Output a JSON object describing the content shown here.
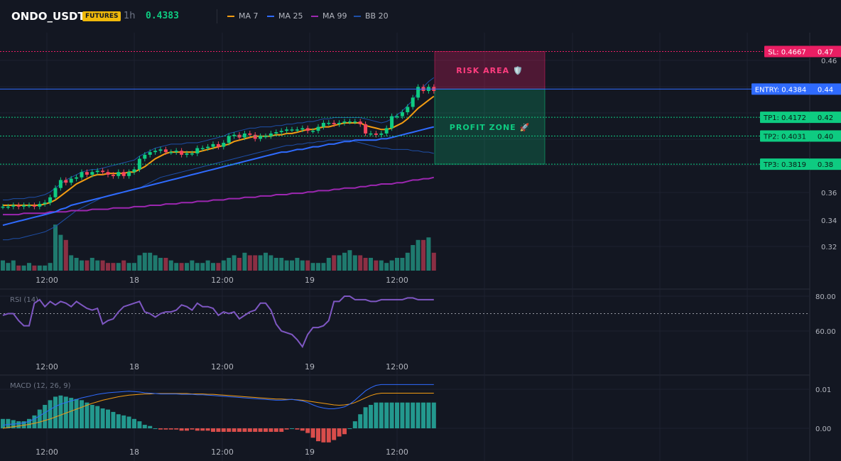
{
  "header": {
    "symbol": "ONDO_USDT",
    "badge": "FUTURES",
    "timeframe": "1h",
    "price": "0.4383",
    "legend": [
      {
        "label": "MA 7",
        "color": "#f39c12"
      },
      {
        "label": "MA 25",
        "color": "#2f6bff"
      },
      {
        "label": "MA 99",
        "color": "#9c27b0"
      },
      {
        "label": "BB 20",
        "color": "#1e4fa8"
      }
    ]
  },
  "levels": {
    "sl": {
      "label": "SL: 0.4667",
      "tick": "0.47",
      "price": 0.4667,
      "color": "#e91e63"
    },
    "entry": {
      "label": "ENTRY: 0.4384",
      "tick": "0.44",
      "price": 0.4384,
      "color": "#2f6bff"
    },
    "tp": [
      {
        "label": "TP1: 0.4172",
        "tick": "0.42",
        "price": 0.4172
      },
      {
        "label": "TP2: 0.4031",
        "tick": "0.40",
        "price": 0.4031
      },
      {
        "label": "TP3: 0.3819",
        "tick": "0.38",
        "price": 0.3819
      }
    ],
    "tp_color": "#0ecb81"
  },
  "zones": {
    "risk_label": "RISK AREA 🛡️",
    "profit_label": "PROFIT ZONE 🚀"
  },
  "chart_data": [
    {
      "type": "candlestick",
      "panel": "price",
      "yticks": [
        "0.46",
        "0.36",
        "0.34",
        "0.32"
      ],
      "xticks": [
        "12:00",
        "18",
        "12:00",
        "19",
        "12:00"
      ],
      "ylim": [
        0.3,
        0.47
      ],
      "close": [
        0.35,
        0.35,
        0.351,
        0.35,
        0.351,
        0.351,
        0.35,
        0.352,
        0.353,
        0.357,
        0.364,
        0.37,
        0.368,
        0.371,
        0.372,
        0.376,
        0.374,
        0.376,
        0.377,
        0.376,
        0.374,
        0.373,
        0.376,
        0.373,
        0.376,
        0.378,
        0.386,
        0.389,
        0.391,
        0.392,
        0.393,
        0.391,
        0.391,
        0.392,
        0.389,
        0.39,
        0.39,
        0.394,
        0.394,
        0.395,
        0.397,
        0.395,
        0.398,
        0.403,
        0.404,
        0.402,
        0.405,
        0.404,
        0.401,
        0.403,
        0.403,
        0.405,
        0.406,
        0.407,
        0.408,
        0.408,
        0.408,
        0.409,
        0.407,
        0.407,
        0.41,
        0.413,
        0.413,
        0.412,
        0.413,
        0.414,
        0.414,
        0.414,
        0.412,
        0.405,
        0.405,
        0.404,
        0.405,
        0.409,
        0.418,
        0.418,
        0.421,
        0.425,
        0.432,
        0.44,
        0.437,
        0.44,
        0.437
      ],
      "ma7": [
        0.351,
        0.351,
        0.351,
        0.351,
        0.351,
        0.351,
        0.351,
        0.351,
        0.352,
        0.353,
        0.355,
        0.358,
        0.361,
        0.364,
        0.367,
        0.369,
        0.371,
        0.373,
        0.374,
        0.374,
        0.375,
        0.375,
        0.375,
        0.375,
        0.376,
        0.376,
        0.378,
        0.38,
        0.383,
        0.386,
        0.388,
        0.39,
        0.391,
        0.391,
        0.391,
        0.391,
        0.391,
        0.391,
        0.392,
        0.393,
        0.394,
        0.395,
        0.396,
        0.397,
        0.399,
        0.4,
        0.401,
        0.402,
        0.403,
        0.403,
        0.403,
        0.403,
        0.404,
        0.404,
        0.405,
        0.405,
        0.406,
        0.407,
        0.408,
        0.408,
        0.409,
        0.41,
        0.41,
        0.411,
        0.412,
        0.413,
        0.413,
        0.413,
        0.413,
        0.411,
        0.41,
        0.409,
        0.408,
        0.408,
        0.409,
        0.411,
        0.413,
        0.416,
        0.42,
        0.424,
        0.427,
        0.43,
        0.433
      ],
      "ma25": [
        0.336,
        0.337,
        0.338,
        0.339,
        0.34,
        0.341,
        0.342,
        0.343,
        0.344,
        0.345,
        0.346,
        0.348,
        0.349,
        0.351,
        0.352,
        0.353,
        0.354,
        0.355,
        0.356,
        0.357,
        0.358,
        0.359,
        0.36,
        0.361,
        0.362,
        0.363,
        0.364,
        0.365,
        0.366,
        0.367,
        0.368,
        0.369,
        0.37,
        0.371,
        0.372,
        0.373,
        0.374,
        0.375,
        0.376,
        0.377,
        0.378,
        0.379,
        0.38,
        0.381,
        0.382,
        0.383,
        0.384,
        0.385,
        0.386,
        0.387,
        0.388,
        0.389,
        0.39,
        0.391,
        0.391,
        0.392,
        0.393,
        0.393,
        0.394,
        0.395,
        0.395,
        0.396,
        0.397,
        0.397,
        0.398,
        0.399,
        0.399,
        0.4,
        0.4,
        0.4,
        0.4,
        0.4,
        0.401,
        0.401,
        0.402,
        0.403,
        0.404,
        0.405,
        0.406,
        0.407,
        0.408,
        0.409,
        0.41
      ],
      "ma99": [
        0.344,
        0.344,
        0.344,
        0.344,
        0.345,
        0.345,
        0.345,
        0.345,
        0.345,
        0.346,
        0.346,
        0.346,
        0.346,
        0.347,
        0.347,
        0.347,
        0.347,
        0.348,
        0.348,
        0.348,
        0.348,
        0.349,
        0.349,
        0.349,
        0.349,
        0.35,
        0.35,
        0.35,
        0.351,
        0.351,
        0.351,
        0.352,
        0.352,
        0.352,
        0.353,
        0.353,
        0.353,
        0.354,
        0.354,
        0.354,
        0.355,
        0.355,
        0.355,
        0.356,
        0.356,
        0.356,
        0.357,
        0.357,
        0.357,
        0.358,
        0.358,
        0.358,
        0.359,
        0.359,
        0.359,
        0.36,
        0.36,
        0.36,
        0.361,
        0.361,
        0.362,
        0.362,
        0.362,
        0.363,
        0.363,
        0.364,
        0.364,
        0.364,
        0.365,
        0.365,
        0.366,
        0.366,
        0.367,
        0.367,
        0.367,
        0.368,
        0.368,
        0.369,
        0.37,
        0.37,
        0.371,
        0.371,
        0.372
      ],
      "bb_upper": [
        0.355,
        0.355,
        0.356,
        0.356,
        0.356,
        0.357,
        0.357,
        0.358,
        0.359,
        0.361,
        0.364,
        0.367,
        0.37,
        0.372,
        0.374,
        0.376,
        0.377,
        0.378,
        0.378,
        0.379,
        0.38,
        0.381,
        0.382,
        0.383,
        0.384,
        0.385,
        0.388,
        0.39,
        0.392,
        0.394,
        0.395,
        0.396,
        0.397,
        0.397,
        0.397,
        0.398,
        0.398,
        0.398,
        0.399,
        0.4,
        0.401,
        0.402,
        0.403,
        0.405,
        0.406,
        0.407,
        0.408,
        0.409,
        0.409,
        0.41,
        0.41,
        0.41,
        0.411,
        0.411,
        0.412,
        0.412,
        0.413,
        0.413,
        0.414,
        0.414,
        0.415,
        0.416,
        0.416,
        0.417,
        0.417,
        0.417,
        0.417,
        0.417,
        0.417,
        0.416,
        0.415,
        0.414,
        0.413,
        0.414,
        0.416,
        0.419,
        0.422,
        0.426,
        0.43,
        0.436,
        0.44,
        0.444,
        0.447
      ],
      "bb_lower": [
        0.325,
        0.325,
        0.326,
        0.326,
        0.327,
        0.328,
        0.329,
        0.33,
        0.331,
        0.333,
        0.335,
        0.338,
        0.341,
        0.344,
        0.347,
        0.349,
        0.351,
        0.353,
        0.355,
        0.357,
        0.358,
        0.359,
        0.36,
        0.361,
        0.362,
        0.363,
        0.364,
        0.366,
        0.368,
        0.37,
        0.372,
        0.373,
        0.374,
        0.375,
        0.376,
        0.377,
        0.378,
        0.379,
        0.38,
        0.381,
        0.382,
        0.383,
        0.384,
        0.385,
        0.386,
        0.387,
        0.388,
        0.389,
        0.39,
        0.391,
        0.392,
        0.393,
        0.394,
        0.395,
        0.396,
        0.396,
        0.397,
        0.397,
        0.398,
        0.398,
        0.399,
        0.399,
        0.4,
        0.4,
        0.4,
        0.4,
        0.4,
        0.399,
        0.398,
        0.397,
        0.396,
        0.395,
        0.394,
        0.394,
        0.393,
        0.393,
        0.393,
        0.393,
        0.392,
        0.392,
        0.391,
        0.391,
        0.39
      ],
      "volume": [
        4,
        3,
        4,
        2,
        2,
        3,
        2,
        2,
        2,
        3,
        18,
        14,
        12,
        6,
        5,
        4,
        4,
        5,
        4,
        4,
        3,
        3,
        3,
        4,
        3,
        3,
        6,
        7,
        7,
        6,
        5,
        5,
        4,
        3,
        3,
        3,
        4,
        3,
        3,
        4,
        3,
        3,
        4,
        5,
        6,
        5,
        7,
        6,
        6,
        6,
        7,
        6,
        5,
        5,
        4,
        4,
        5,
        4,
        4,
        3,
        3,
        3,
        5,
        6,
        6,
        7,
        8,
        6,
        6,
        5,
        5,
        4,
        4,
        3,
        4,
        5,
        5,
        7,
        10,
        12,
        12,
        13,
        7
      ]
    },
    {
      "type": "line",
      "panel": "rsi",
      "title": "RSI (14)",
      "yticks": [
        "80.00",
        "60.00"
      ],
      "ylim": [
        50,
        82
      ],
      "level": 70,
      "values": [
        69,
        70,
        70,
        66,
        63,
        63,
        76,
        78,
        74,
        77,
        75,
        77,
        76,
        74,
        77,
        75,
        73,
        72,
        73,
        64,
        66,
        67,
        71,
        74,
        75,
        76,
        77,
        71,
        70,
        68,
        70,
        71,
        71,
        72,
        75,
        74,
        72,
        76,
        74,
        74,
        73,
        69,
        71,
        70,
        71,
        67,
        69,
        71,
        72,
        76,
        76,
        72,
        64,
        60,
        59,
        58,
        55,
        51,
        58,
        62,
        62,
        63,
        66,
        77,
        77,
        80,
        80,
        78,
        78,
        78,
        77,
        77,
        78,
        78,
        78,
        78,
        78,
        79,
        79,
        78,
        78,
        78,
        78
      ]
    },
    {
      "type": "line-histogram",
      "panel": "macd",
      "title": "MACD (12, 26, 9)",
      "yticks": [
        "0.01",
        "0.00"
      ],
      "ylim": [
        -0.004,
        0.014
      ],
      "macd": [
        0.0008,
        0.001,
        0.0011,
        0.0012,
        0.0014,
        0.0018,
        0.0024,
        0.0032,
        0.004,
        0.0048,
        0.0056,
        0.0062,
        0.0066,
        0.007,
        0.0074,
        0.0078,
        0.0081,
        0.0084,
        0.0087,
        0.0089,
        0.0091,
        0.0092,
        0.0093,
        0.0094,
        0.0095,
        0.0094,
        0.0093,
        0.0091,
        0.009,
        0.0089,
        0.0088,
        0.0088,
        0.0088,
        0.0088,
        0.0087,
        0.0087,
        0.0087,
        0.0086,
        0.0086,
        0.0085,
        0.0084,
        0.0083,
        0.0082,
        0.0081,
        0.008,
        0.0079,
        0.0078,
        0.0077,
        0.0076,
        0.0075,
        0.0074,
        0.0073,
        0.0072,
        0.0072,
        0.0073,
        0.0074,
        0.0072,
        0.007,
        0.0066,
        0.006,
        0.0055,
        0.0052,
        0.005,
        0.005,
        0.0052,
        0.0055,
        0.0062,
        0.0072,
        0.0084,
        0.0096,
        0.0104,
        0.011,
        0.0112,
        0.0112,
        0.0112,
        0.0112,
        0.0112,
        0.0112,
        0.0112,
        0.0112,
        0.0112,
        0.0112,
        0.0112
      ],
      "signal": [
        0.0,
        0.0002,
        0.0004,
        0.0006,
        0.0008,
        0.001,
        0.0013,
        0.0016,
        0.002,
        0.0024,
        0.0029,
        0.0034,
        0.0039,
        0.0044,
        0.0049,
        0.0054,
        0.0059,
        0.0064,
        0.0068,
        0.0072,
        0.0075,
        0.0078,
        0.0081,
        0.0083,
        0.0085,
        0.0086,
        0.0087,
        0.0088,
        0.0088,
        0.0089,
        0.0089,
        0.0089,
        0.0089,
        0.0089,
        0.0089,
        0.0089,
        0.0088,
        0.0088,
        0.0088,
        0.0087,
        0.0087,
        0.0086,
        0.0085,
        0.0084,
        0.0083,
        0.0082,
        0.0081,
        0.008,
        0.0079,
        0.0078,
        0.0077,
        0.0076,
        0.0075,
        0.0075,
        0.0074,
        0.0074,
        0.0073,
        0.0072,
        0.007,
        0.0068,
        0.0066,
        0.0064,
        0.0062,
        0.006,
        0.0059,
        0.006,
        0.0062,
        0.0066,
        0.0072,
        0.0078,
        0.0084,
        0.0088,
        0.009,
        0.009,
        0.009,
        0.009,
        0.009,
        0.009,
        0.009,
        0.009,
        0.009,
        0.009,
        0.009
      ],
      "xticks": [
        "12:00",
        "18",
        "12:00",
        "19",
        "12:00"
      ]
    }
  ]
}
